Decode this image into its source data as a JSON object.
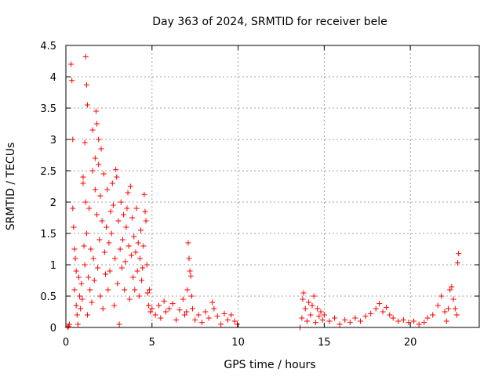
{
  "chart_data": {
    "type": "scatter",
    "title": "Day 363 of 2024, SRMTID for receiver bele",
    "xlabel": "GPS time / hours",
    "ylabel": "SRMTID / TECUs",
    "xlim": [
      0,
      24
    ],
    "ylim": [
      0,
      4.5
    ],
    "xticks": [
      0,
      5,
      10,
      15,
      20
    ],
    "xtick_labels": [
      "0",
      "5",
      "10",
      "15",
      "20"
    ],
    "yticks": [
      0,
      0.5,
      1,
      1.5,
      2,
      2.5,
      3,
      3.5,
      4,
      4.5
    ],
    "ytick_labels": [
      "0",
      "0.5",
      "1",
      "1.5",
      "2",
      "2.5",
      "3",
      "3.5",
      "4",
      "4.5"
    ],
    "grid": true,
    "marker": "+",
    "color": "#ff0000",
    "series": [
      {
        "name": "SRMTID",
        "points": [
          [
            0.1,
            0.0
          ],
          [
            0.15,
            0.02
          ],
          [
            0.2,
            0.05
          ],
          [
            0.3,
            4.2
          ],
          [
            0.35,
            3.94
          ],
          [
            0.4,
            3.0
          ],
          [
            0.4,
            1.9
          ],
          [
            0.45,
            1.6
          ],
          [
            0.5,
            1.25
          ],
          [
            0.5,
            0.6
          ],
          [
            0.55,
            1.1
          ],
          [
            0.6,
            0.9
          ],
          [
            0.6,
            0.35
          ],
          [
            0.65,
            0.2
          ],
          [
            0.7,
            0.05
          ],
          [
            0.75,
            0.8
          ],
          [
            0.8,
            0.5
          ],
          [
            0.85,
            0.3
          ],
          [
            0.9,
            0.7
          ],
          [
            0.95,
            0.45
          ],
          [
            1.0,
            2.4
          ],
          [
            1.0,
            2.3
          ],
          [
            1.05,
            1.3
          ],
          [
            1.1,
            1.0
          ],
          [
            1.1,
            2.95
          ],
          [
            1.15,
            4.32
          ],
          [
            1.15,
            2.0
          ],
          [
            1.2,
            3.87
          ],
          [
            1.2,
            1.5
          ],
          [
            1.25,
            3.55
          ],
          [
            1.25,
            0.2
          ],
          [
            1.3,
            0.8
          ],
          [
            1.35,
            1.9
          ],
          [
            1.4,
            0.6
          ],
          [
            1.45,
            1.25
          ],
          [
            1.5,
            0.4
          ],
          [
            1.55,
            2.5
          ],
          [
            1.55,
            3.15
          ],
          [
            1.6,
            1.1
          ],
          [
            1.65,
            0.75
          ],
          [
            1.7,
            2.2
          ],
          [
            1.7,
            2.7
          ],
          [
            1.75,
            3.45
          ],
          [
            1.8,
            1.8
          ],
          [
            1.8,
            3.25
          ],
          [
            1.85,
            0.95
          ],
          [
            1.9,
            2.6
          ],
          [
            1.9,
            3.0
          ],
          [
            1.95,
            1.4
          ],
          [
            2.0,
            0.5
          ],
          [
            2.0,
            2.1
          ],
          [
            2.05,
            2.85
          ],
          [
            2.1,
            1.7
          ],
          [
            2.15,
            0.3
          ],
          [
            2.2,
            2.45
          ],
          [
            2.25,
            1.2
          ],
          [
            2.3,
            0.85
          ],
          [
            2.35,
            1.6
          ],
          [
            2.4,
            2.2
          ],
          [
            2.45,
            0.6
          ],
          [
            2.5,
            1.35
          ],
          [
            2.55,
            0.9
          ],
          [
            2.6,
            1.85
          ],
          [
            2.65,
            1.5
          ],
          [
            2.7,
            2.3
          ],
          [
            2.75,
            1.95
          ],
          [
            2.8,
            0.35
          ],
          [
            2.85,
            1.1
          ],
          [
            2.9,
            2.52
          ],
          [
            2.95,
            2.4
          ],
          [
            3.0,
            0.7
          ],
          [
            3.05,
            1.7
          ],
          [
            3.1,
            0.05
          ],
          [
            3.15,
            1.25
          ],
          [
            3.2,
            2.0
          ],
          [
            3.25,
            0.95
          ],
          [
            3.3,
            1.4
          ],
          [
            3.35,
            1.8
          ],
          [
            3.4,
            0.6
          ],
          [
            3.45,
            1.05
          ],
          [
            3.5,
            1.6
          ],
          [
            3.55,
            1.9
          ],
          [
            3.6,
            2.15
          ],
          [
            3.65,
            1.3
          ],
          [
            3.7,
            0.45
          ],
          [
            3.75,
            2.25
          ],
          [
            3.8,
            1.15
          ],
          [
            3.85,
            1.75
          ],
          [
            3.9,
            0.8
          ],
          [
            3.95,
            1.45
          ],
          [
            4.0,
            0.6
          ],
          [
            4.05,
            1.2
          ],
          [
            4.1,
            1.9
          ],
          [
            4.15,
            0.9
          ],
          [
            4.2,
            1.35
          ],
          [
            4.25,
            0.5
          ],
          [
            4.3,
            1.1
          ],
          [
            4.35,
            1.55
          ],
          [
            4.4,
            0.75
          ],
          [
            4.45,
            0.95
          ],
          [
            4.5,
            1.3
          ],
          [
            4.55,
            2.12
          ],
          [
            4.6,
            1.85
          ],
          [
            4.65,
            1.7
          ],
          [
            4.7,
            1.0
          ],
          [
            4.75,
            0.55
          ],
          [
            4.8,
            0.35
          ],
          [
            4.85,
            0.6
          ],
          [
            4.9,
            0.25
          ],
          [
            5.0,
            0.3
          ],
          [
            5.2,
            0.2
          ],
          [
            5.4,
            0.35
          ],
          [
            5.5,
            0.15
          ],
          [
            5.7,
            0.42
          ],
          [
            5.8,
            0.25
          ],
          [
            6.0,
            0.3
          ],
          [
            6.2,
            0.38
          ],
          [
            6.4,
            0.12
          ],
          [
            6.6,
            0.28
          ],
          [
            6.8,
            0.45
          ],
          [
            6.9,
            0.2
          ],
          [
            7.0,
            0.25
          ],
          [
            7.05,
            0.6
          ],
          [
            7.1,
            1.35
          ],
          [
            7.15,
            1.1
          ],
          [
            7.2,
            0.9
          ],
          [
            7.25,
            0.82
          ],
          [
            7.3,
            0.5
          ],
          [
            7.35,
            0.3
          ],
          [
            7.5,
            0.12
          ],
          [
            7.7,
            0.2
          ],
          [
            7.9,
            0.08
          ],
          [
            8.1,
            0.25
          ],
          [
            8.3,
            0.15
          ],
          [
            8.5,
            0.4
          ],
          [
            8.6,
            0.3
          ],
          [
            8.8,
            0.18
          ],
          [
            9.0,
            0.05
          ],
          [
            9.2,
            0.22
          ],
          [
            9.4,
            0.12
          ],
          [
            9.6,
            0.2
          ],
          [
            9.8,
            0.1
          ],
          [
            9.95,
            0.05
          ],
          [
            13.6,
            0.0
          ],
          [
            13.7,
            0.15
          ],
          [
            13.75,
            0.45
          ],
          [
            13.8,
            0.55
          ],
          [
            13.9,
            0.3
          ],
          [
            14.0,
            0.1
          ],
          [
            14.1,
            0.4
          ],
          [
            14.2,
            0.2
          ],
          [
            14.3,
            0.35
          ],
          [
            14.4,
            0.5
          ],
          [
            14.5,
            0.08
          ],
          [
            14.6,
            0.3
          ],
          [
            14.7,
            0.18
          ],
          [
            14.8,
            0.25
          ],
          [
            14.9,
            0.12
          ],
          [
            15.0,
            0.2
          ],
          [
            15.3,
            0.1
          ],
          [
            15.6,
            0.15
          ],
          [
            15.9,
            0.05
          ],
          [
            16.2,
            0.12
          ],
          [
            16.5,
            0.08
          ],
          [
            16.8,
            0.15
          ],
          [
            17.1,
            0.1
          ],
          [
            17.4,
            0.18
          ],
          [
            17.7,
            0.22
          ],
          [
            18.0,
            0.3
          ],
          [
            18.2,
            0.38
          ],
          [
            18.4,
            0.25
          ],
          [
            18.6,
            0.32
          ],
          [
            18.8,
            0.2
          ],
          [
            19.0,
            0.15
          ],
          [
            19.3,
            0.1
          ],
          [
            19.6,
            0.12
          ],
          [
            19.9,
            0.08
          ],
          [
            20.2,
            0.1
          ],
          [
            20.5,
            0.05
          ],
          [
            20.8,
            0.08
          ],
          [
            21.0,
            0.15
          ],
          [
            21.3,
            0.2
          ],
          [
            21.6,
            0.35
          ],
          [
            21.8,
            0.5
          ],
          [
            22.0,
            0.25
          ],
          [
            22.1,
            0.1
          ],
          [
            22.2,
            0.3
          ],
          [
            22.3,
            0.6
          ],
          [
            22.4,
            0.65
          ],
          [
            22.5,
            0.45
          ],
          [
            22.6,
            0.3
          ],
          [
            22.7,
            0.2
          ],
          [
            22.75,
            1.03
          ],
          [
            22.8,
            1.18
          ]
        ]
      }
    ]
  }
}
